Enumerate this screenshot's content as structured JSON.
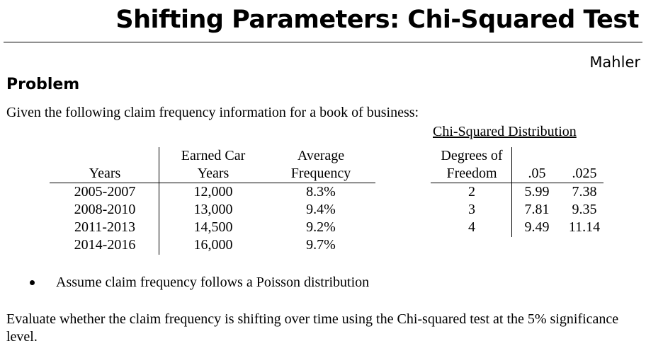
{
  "header": {
    "title": "Shifting Parameters: Chi-Squared Test",
    "author": "Mahler"
  },
  "problem": {
    "heading": "Problem",
    "intro": "Given the following claim frequency information for a book of business:",
    "bullet": "Assume claim frequency follows a Poisson distribution",
    "question": "Evaluate whether the claim frequency is shifting over time using the Chi-squared test at the 5% significance level."
  },
  "frequency_table": {
    "headers": {
      "years": "Years",
      "earned_line1": "Earned Car",
      "earned_line2": "Years",
      "freq_line1": "Average",
      "freq_line2": "Frequency"
    },
    "rows": [
      {
        "years": "2005-2007",
        "earned": "12,000",
        "freq": "8.3%"
      },
      {
        "years": "2008-2010",
        "earned": "13,000",
        "freq": "9.4%"
      },
      {
        "years": "2011-2013",
        "earned": "14,500",
        "freq": "9.2%"
      },
      {
        "years": "2014-2016",
        "earned": "16,000",
        "freq": "9.7%"
      }
    ]
  },
  "chi_table": {
    "title": "Chi-Squared Distribution",
    "headers": {
      "dof_line1": "Degrees of",
      "dof_line2": "Freedom",
      "p1": ".05",
      "p2": ".025"
    },
    "rows": [
      {
        "dof": "2",
        "p1": "5.99",
        "p2": "7.38"
      },
      {
        "dof": "3",
        "p1": "7.81",
        "p2": "9.35"
      },
      {
        "dof": "4",
        "p1": "9.49",
        "p2": "11.14"
      }
    ]
  }
}
